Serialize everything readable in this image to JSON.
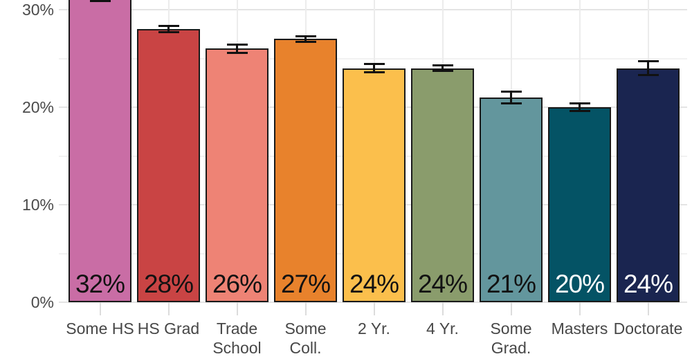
{
  "chart_data": {
    "type": "bar",
    "title": "",
    "xlabel": "",
    "ylabel": "",
    "categories": [
      "Some HS",
      "HS Grad",
      "Trade\nSchool",
      "Some\nColl.",
      "2 Yr.",
      "4 Yr.",
      "Some\nGrad.",
      "Masters",
      "Doctorate"
    ],
    "values": [
      32,
      28,
      26,
      27,
      24,
      24,
      21,
      20,
      24
    ],
    "value_labels": [
      "32%",
      "28%",
      "26%",
      "27%",
      "24%",
      "24%",
      "21%",
      "20%",
      "24%"
    ],
    "error_bars": [
      1.1,
      0.3,
      0.4,
      0.3,
      0.4,
      0.3,
      0.6,
      0.4,
      0.7
    ],
    "bar_colors": [
      "#C96DA5",
      "#C94444",
      "#EE8375",
      "#E8822C",
      "#FBBF4C",
      "#8A9C6C",
      "#63969D",
      "#045365",
      "#1A2550"
    ],
    "value_label_colors": [
      "#121212",
      "#121212",
      "#121212",
      "#121212",
      "#121212",
      "#121212",
      "#121212",
      "#FFFFFF",
      "#FFFFFF"
    ],
    "y_axis": {
      "major_tick_labels": [
        "0%",
        "10%",
        "20%",
        "30%"
      ],
      "major_tick_values": [
        0,
        10,
        20,
        30
      ],
      "minor_tick_values": [
        5,
        15,
        25
      ]
    },
    "ylim_visible": [
      0,
      31
    ],
    "grid": "on",
    "legend": "none",
    "note_top_cropped": "first bar (32%) extends above visible area",
    "colors": {
      "bar_border": "#191919",
      "grid_major": "#E4E4E4",
      "grid_minor": "#F2F2F2",
      "vertical_grid": "#ECECEC",
      "axis_text": "#4A4A4A",
      "error_bar": "#111111",
      "background": "#FFFFFF"
    }
  }
}
